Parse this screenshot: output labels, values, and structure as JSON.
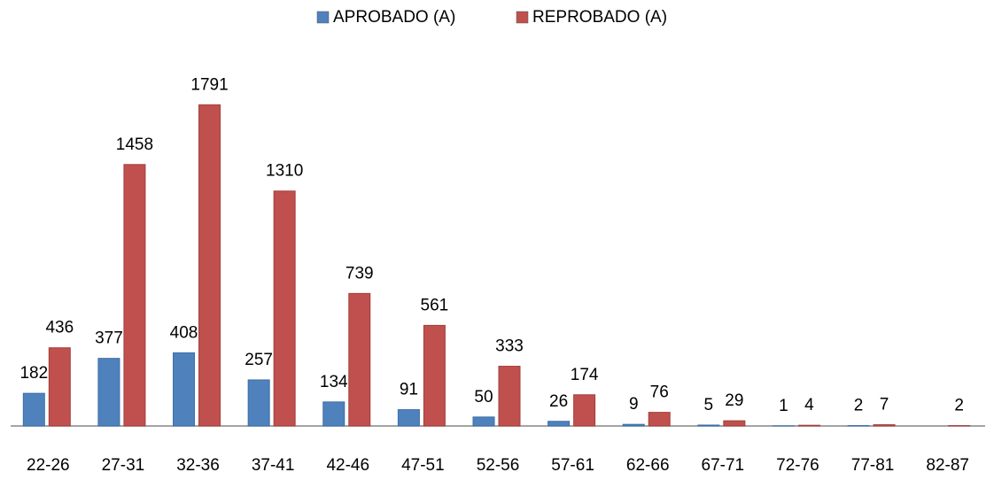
{
  "chart_data": {
    "type": "bar",
    "categories": [
      "22-26",
      "27-31",
      "32-36",
      "37-41",
      "42-46",
      "47-51",
      "52-56",
      "57-61",
      "62-66",
      "67-71",
      "72-76",
      "77-81",
      "82-87"
    ],
    "series": [
      {
        "name": "APROBADO (A)",
        "color": "#4f81bd",
        "values": [
          182,
          377,
          408,
          257,
          134,
          91,
          50,
          26,
          9,
          5,
          1,
          2,
          null
        ]
      },
      {
        "name": "REPROBADO (A)",
        "color": "#c0504d",
        "values": [
          436,
          1458,
          1791,
          1310,
          739,
          561,
          333,
          174,
          76,
          29,
          4,
          7,
          2
        ]
      }
    ],
    "ylim": [
      0,
      2000
    ],
    "legend": "top"
  }
}
